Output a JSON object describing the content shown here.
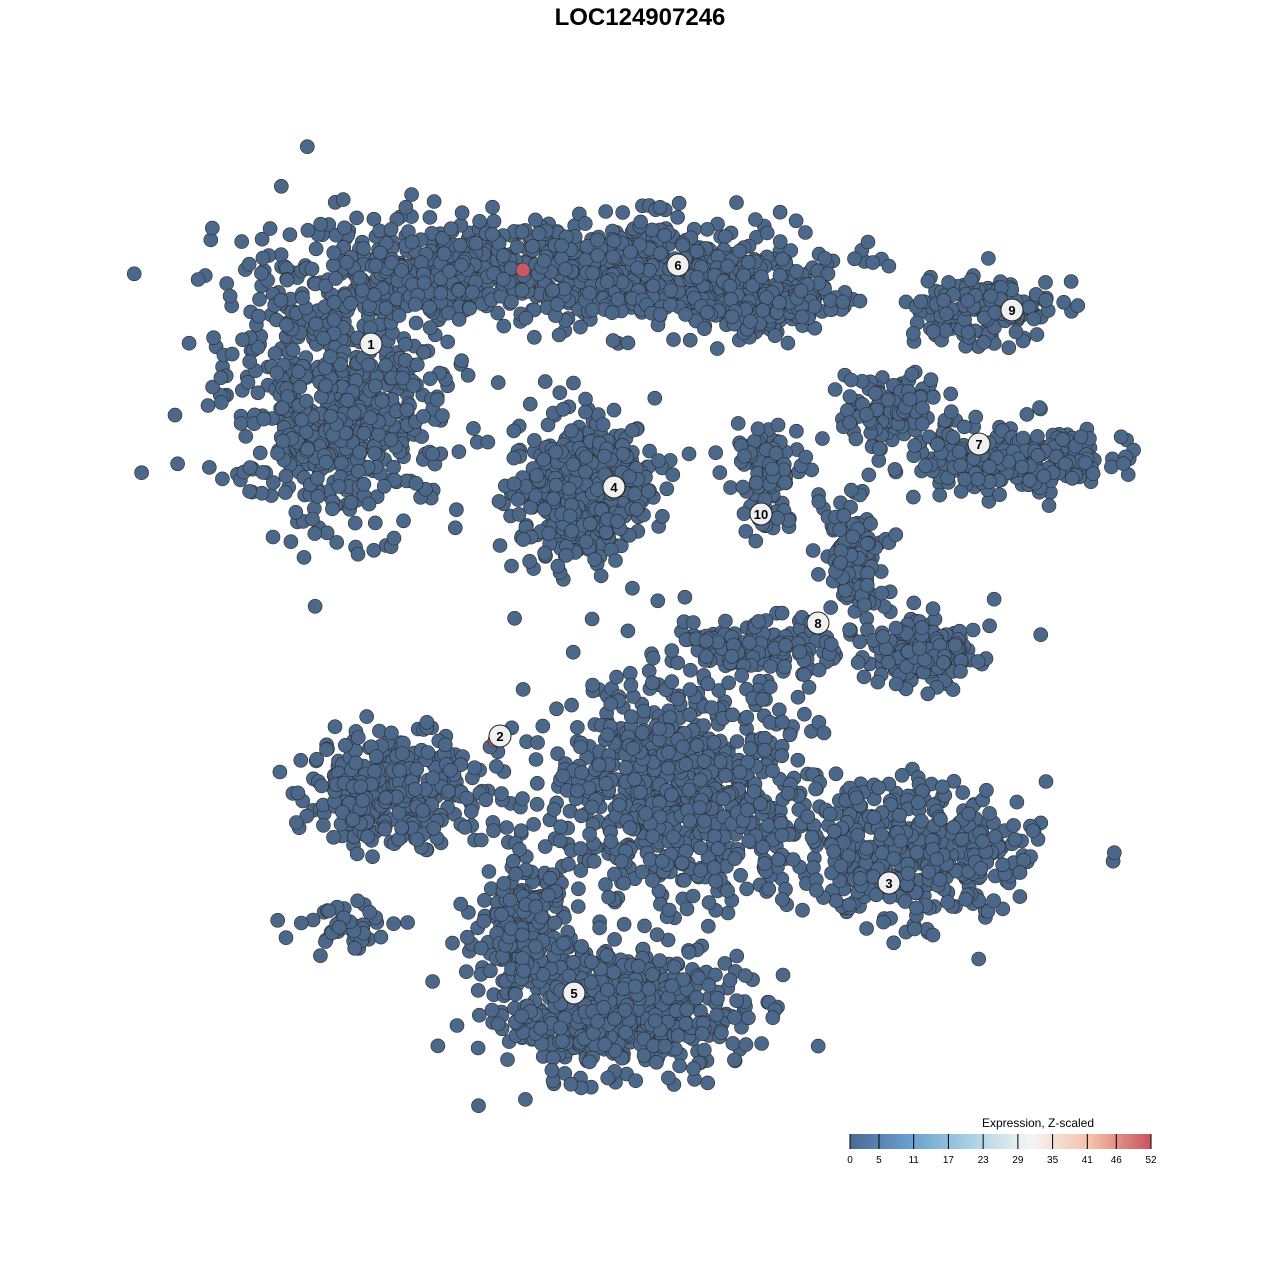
{
  "chart_data": {
    "type": "scatter",
    "title": "LOC124907246",
    "xlabel": "",
    "ylabel": "",
    "grid": false,
    "point_color": "#4b6789",
    "highlight_color": "#c85a66",
    "cluster_labels": [
      "1",
      "2",
      "3",
      "4",
      "5",
      "6",
      "7",
      "8",
      "9",
      "10"
    ],
    "colorbar": {
      "title": "Expression, Z-scaled",
      "ticks": [
        "0",
        "5",
        "11",
        "17",
        "23",
        "29",
        "35",
        "41",
        "46",
        "52"
      ],
      "range": [
        0,
        52
      ],
      "colors": [
        "#4a6a94",
        "#6a9fcf",
        "#a9d0e4",
        "#f5f5f5",
        "#f4c0a6",
        "#c9525f"
      ],
      "placement": "bottom-right"
    }
  }
}
